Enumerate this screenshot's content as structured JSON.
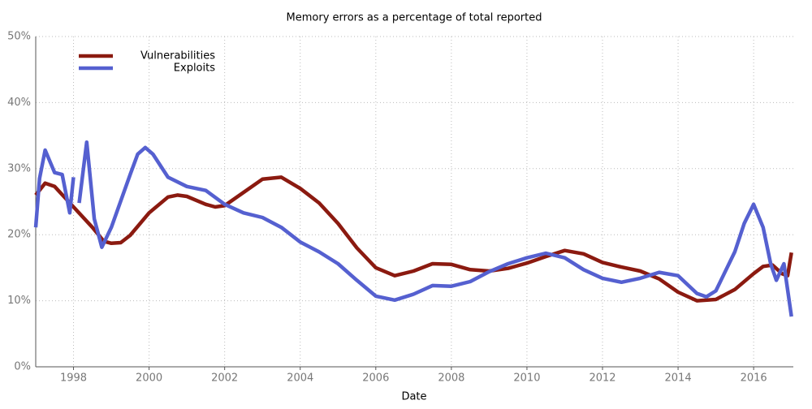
{
  "chart_data": {
    "type": "line",
    "title": "Memory errors as a percentage of total reported",
    "x_label": "Date",
    "xlim": [
      1997,
      2017.05
    ],
    "xticks": [
      1998,
      2000,
      2002,
      2004,
      2006,
      2008,
      2010,
      2012,
      2014,
      2016
    ],
    "ylim": [
      0,
      50
    ],
    "yticks": [
      {
        "value": 0,
        "label": "0%"
      },
      {
        "value": 10,
        "label": "10%"
      },
      {
        "value": 20,
        "label": "20%"
      },
      {
        "value": 30,
        "label": "30%"
      },
      {
        "value": 40,
        "label": "40%"
      },
      {
        "value": 50,
        "label": "50%"
      }
    ],
    "grid": true,
    "legend": "upper left",
    "series": [
      {
        "name": "Vulnerabilities",
        "color": "#8b1a10",
        "x": [
          1997.0,
          1997.25,
          1997.5,
          1998.0,
          1998.5,
          1998.8,
          1999.0,
          1999.25,
          1999.5,
          2000.0,
          2000.5,
          2000.75,
          2001.0,
          2001.5,
          2001.75,
          2002.0,
          2002.5,
          2003.0,
          2003.5,
          2004.0,
          2004.5,
          2005.0,
          2005.5,
          2006.0,
          2006.5,
          2007.0,
          2007.5,
          2008.0,
          2008.5,
          2009.0,
          2009.5,
          2010.0,
          2010.5,
          2011.0,
          2011.5,
          2012.0,
          2012.5,
          2013.0,
          2013.5,
          2014.0,
          2014.5,
          2015.0,
          2015.5,
          2016.0,
          2016.25,
          2016.5,
          2016.75,
          2016.9,
          2017.0
        ],
        "values": [
          26,
          27.8,
          27.3,
          24.2,
          21.1,
          19,
          18.7,
          18.8,
          19.9,
          23.3,
          25.7,
          26,
          25.8,
          24.6,
          24.2,
          24.4,
          26.4,
          28.4,
          28.7,
          27,
          24.8,
          21.7,
          18,
          15,
          13.8,
          14.5,
          15.6,
          15.5,
          14.7,
          14.5,
          14.9,
          15.7,
          16.7,
          17.6,
          17.1,
          15.8,
          15.1,
          14.5,
          13.3,
          11.3,
          10,
          10.2,
          11.7,
          14.1,
          15.2,
          15.4,
          14.1,
          13.8,
          17.3
        ]
      },
      {
        "name": "Exploits",
        "color": "#5560d0",
        "x": [
          1997.0,
          1997.1,
          1997.25,
          1997.5,
          1997.7,
          1997.9,
          1998.0,
          1998.07,
          1998.15,
          1998.35,
          1998.55,
          1998.75,
          1999.0,
          1999.5,
          1999.7,
          1999.9,
          2000.1,
          2000.5,
          2001.0,
          2001.5,
          2002.0,
          2002.5,
          2003.0,
          2003.5,
          2004.0,
          2004.5,
          2005.0,
          2005.5,
          2006.0,
          2006.5,
          2007.0,
          2007.5,
          2008.0,
          2008.5,
          2009.0,
          2009.5,
          2010.0,
          2010.5,
          2011.0,
          2011.5,
          2012.0,
          2012.5,
          2013.0,
          2013.5,
          2014.0,
          2014.5,
          2014.75,
          2015.0,
          2015.5,
          2015.75,
          2016.0,
          2016.25,
          2016.45,
          2016.6,
          2016.8,
          2017.0
        ],
        "values": [
          21.1,
          28.5,
          32.8,
          29.4,
          29.1,
          23.3,
          28.7,
          null,
          24.8,
          34,
          22.4,
          18.1,
          21.1,
          29.1,
          32.2,
          33.2,
          32.2,
          28.7,
          27.3,
          26.7,
          24.6,
          23.3,
          22.6,
          21.1,
          18.9,
          17.4,
          15.6,
          13.1,
          10.7,
          10.1,
          11,
          12.3,
          12.2,
          12.9,
          14.4,
          15.6,
          16.5,
          17.2,
          16.5,
          14.7,
          13.4,
          12.8,
          13.4,
          14.3,
          13.8,
          11.1,
          10.6,
          11.5,
          17.4,
          21.7,
          24.6,
          21.1,
          15.6,
          13.1,
          15.6,
          7.6
        ]
      }
    ]
  }
}
